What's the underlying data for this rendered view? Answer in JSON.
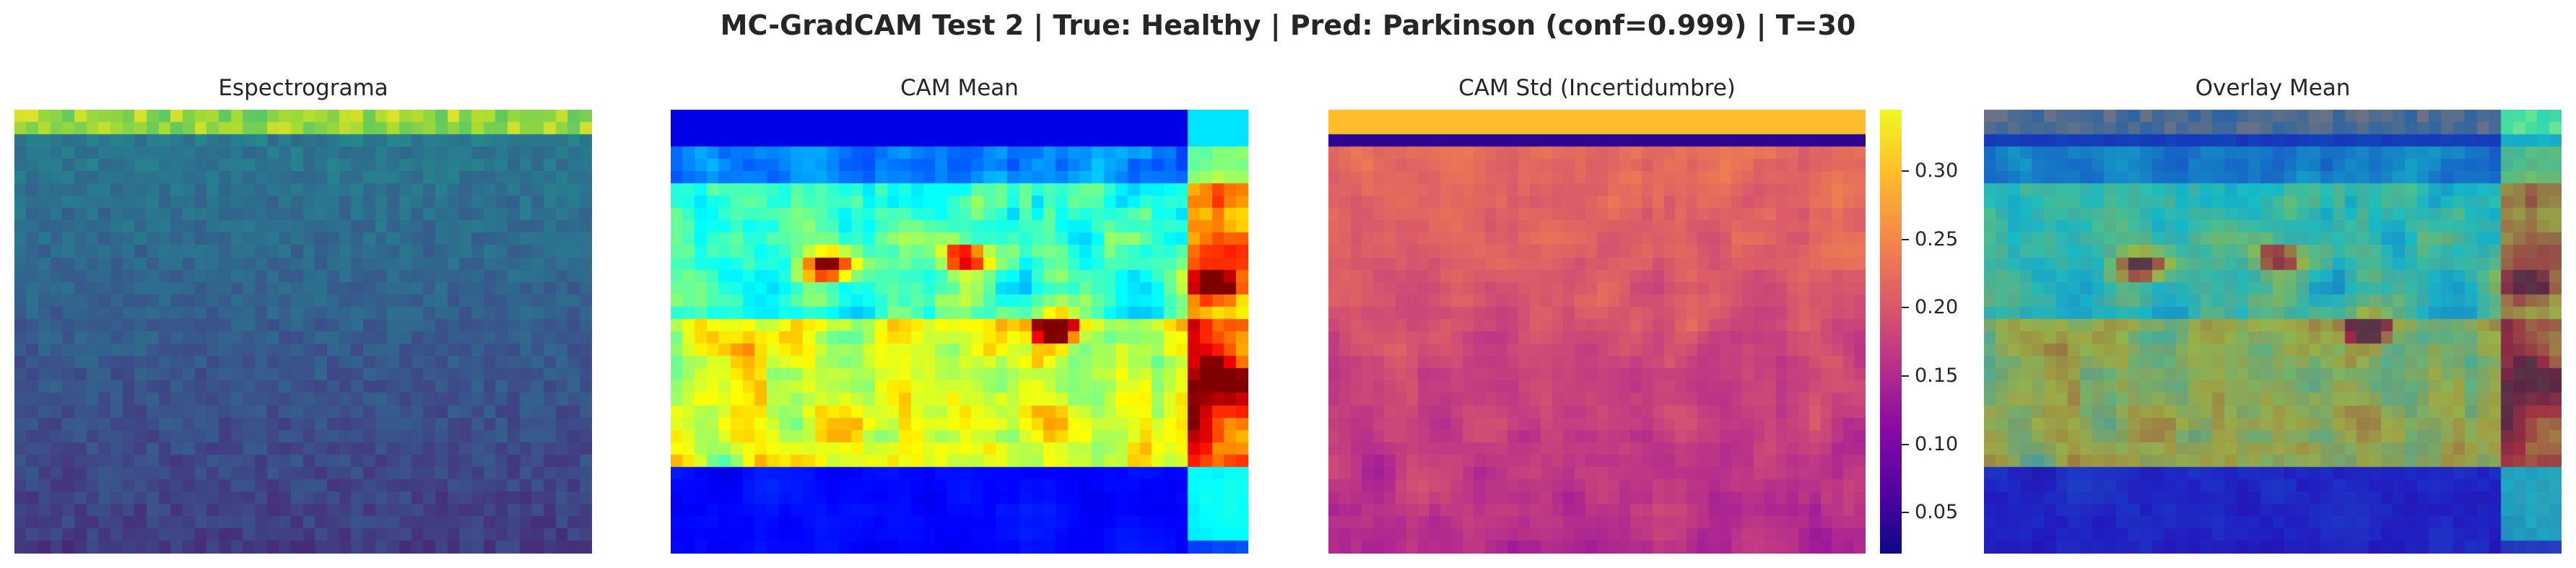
{
  "suptitle": "MC-GradCAM Test 2 | True: Healthy | Pred: Parkinson (conf=0.999) | T=30",
  "chart_data": [
    {
      "type": "heatmap",
      "title": "Espectrograma",
      "colormap": "viridis",
      "grid": false
    },
    {
      "type": "heatmap",
      "title": "CAM Mean",
      "colormap": "jet",
      "grid": false
    },
    {
      "type": "heatmap",
      "title": "CAM Std (Incertidumbre)",
      "colormap": "plasma",
      "grid": false,
      "colorbar": {
        "vmin": 0.02,
        "vmax": 0.345,
        "ticks": [
          0.05,
          0.1,
          0.15,
          0.2,
          0.25,
          0.3
        ],
        "tick_labels": [
          "0.05",
          "0.10",
          "0.15",
          "0.20",
          "0.25",
          "0.30"
        ]
      }
    },
    {
      "type": "heatmap",
      "title": "Overlay Mean",
      "colormap": "jet over viridis",
      "grid": false
    }
  ],
  "colors": {
    "text": "#262626",
    "background": "#ffffff"
  }
}
